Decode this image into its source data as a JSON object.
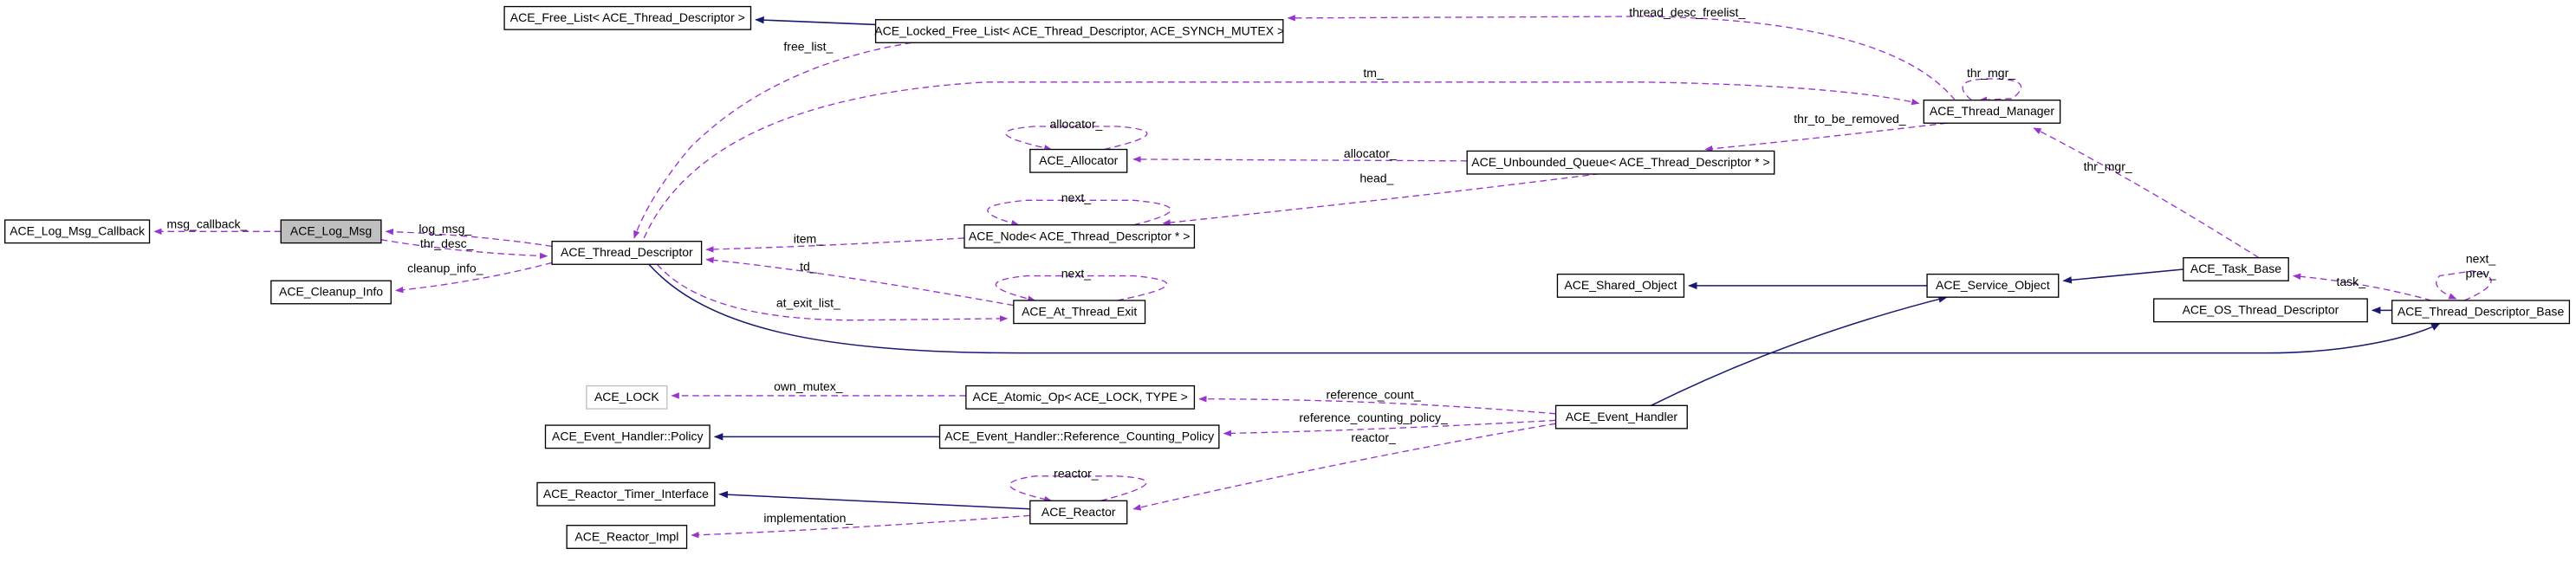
{
  "nodes": [
    {
      "label": "ACE_Free_List< ACE_Thread_Descriptor >"
    },
    {
      "label": "ACE_Locked_Free_List< ACE_Thread_Descriptor, ACE_SYNCH_MUTEX >"
    },
    {
      "label": "ACE_Thread_Manager"
    },
    {
      "label": "ACE_Allocator"
    },
    {
      "label": "ACE_Unbounded_Queue< ACE_Thread_Descriptor * >"
    },
    {
      "label": "ACE_Log_Msg_Callback"
    },
    {
      "label": "ACE_Log_Msg"
    },
    {
      "label": "ACE_Thread_Descriptor"
    },
    {
      "label": "ACE_Node< ACE_Thread_Descriptor * >"
    },
    {
      "label": "ACE_Cleanup_Info"
    },
    {
      "label": "ACE_At_Thread_Exit"
    },
    {
      "label": "ACE_Task_Base"
    },
    {
      "label": "ACE_Shared_Object"
    },
    {
      "label": "ACE_Service_Object"
    },
    {
      "label": "ACE_OS_Thread_Descriptor"
    },
    {
      "label": "ACE_Thread_Descriptor_Base"
    },
    {
      "label": "ACE_LOCK"
    },
    {
      "label": "ACE_Atomic_Op< ACE_LOCK, TYPE >"
    },
    {
      "label": "ACE_Event_Handler"
    },
    {
      "label": "ACE_Event_Handler::Policy"
    },
    {
      "label": "ACE_Event_Handler::Reference_Counting_Policy"
    },
    {
      "label": "ACE_Reactor_Timer_Interface"
    },
    {
      "label": "ACE_Reactor"
    },
    {
      "label": "ACE_Reactor_Impl"
    }
  ],
  "edge_labels": [
    "msg_callback_",
    "log_msg_",
    "thr_desc_",
    "cleanup_info_",
    "free_list_",
    "tm_",
    "thread_desc_freelist_",
    "thr_mgr_",
    "thr_to_be_removed_",
    "allocator_",
    "allocator_",
    "head_",
    "next_",
    "item_",
    "td_",
    "next_",
    "at_exit_list_",
    "thr_mgr_",
    "task_",
    "next_",
    "prev_",
    "own_mutex_",
    "reference_count_",
    "reference_counting_policy_",
    "reactor_",
    "reactor_",
    "implementation_"
  ]
}
